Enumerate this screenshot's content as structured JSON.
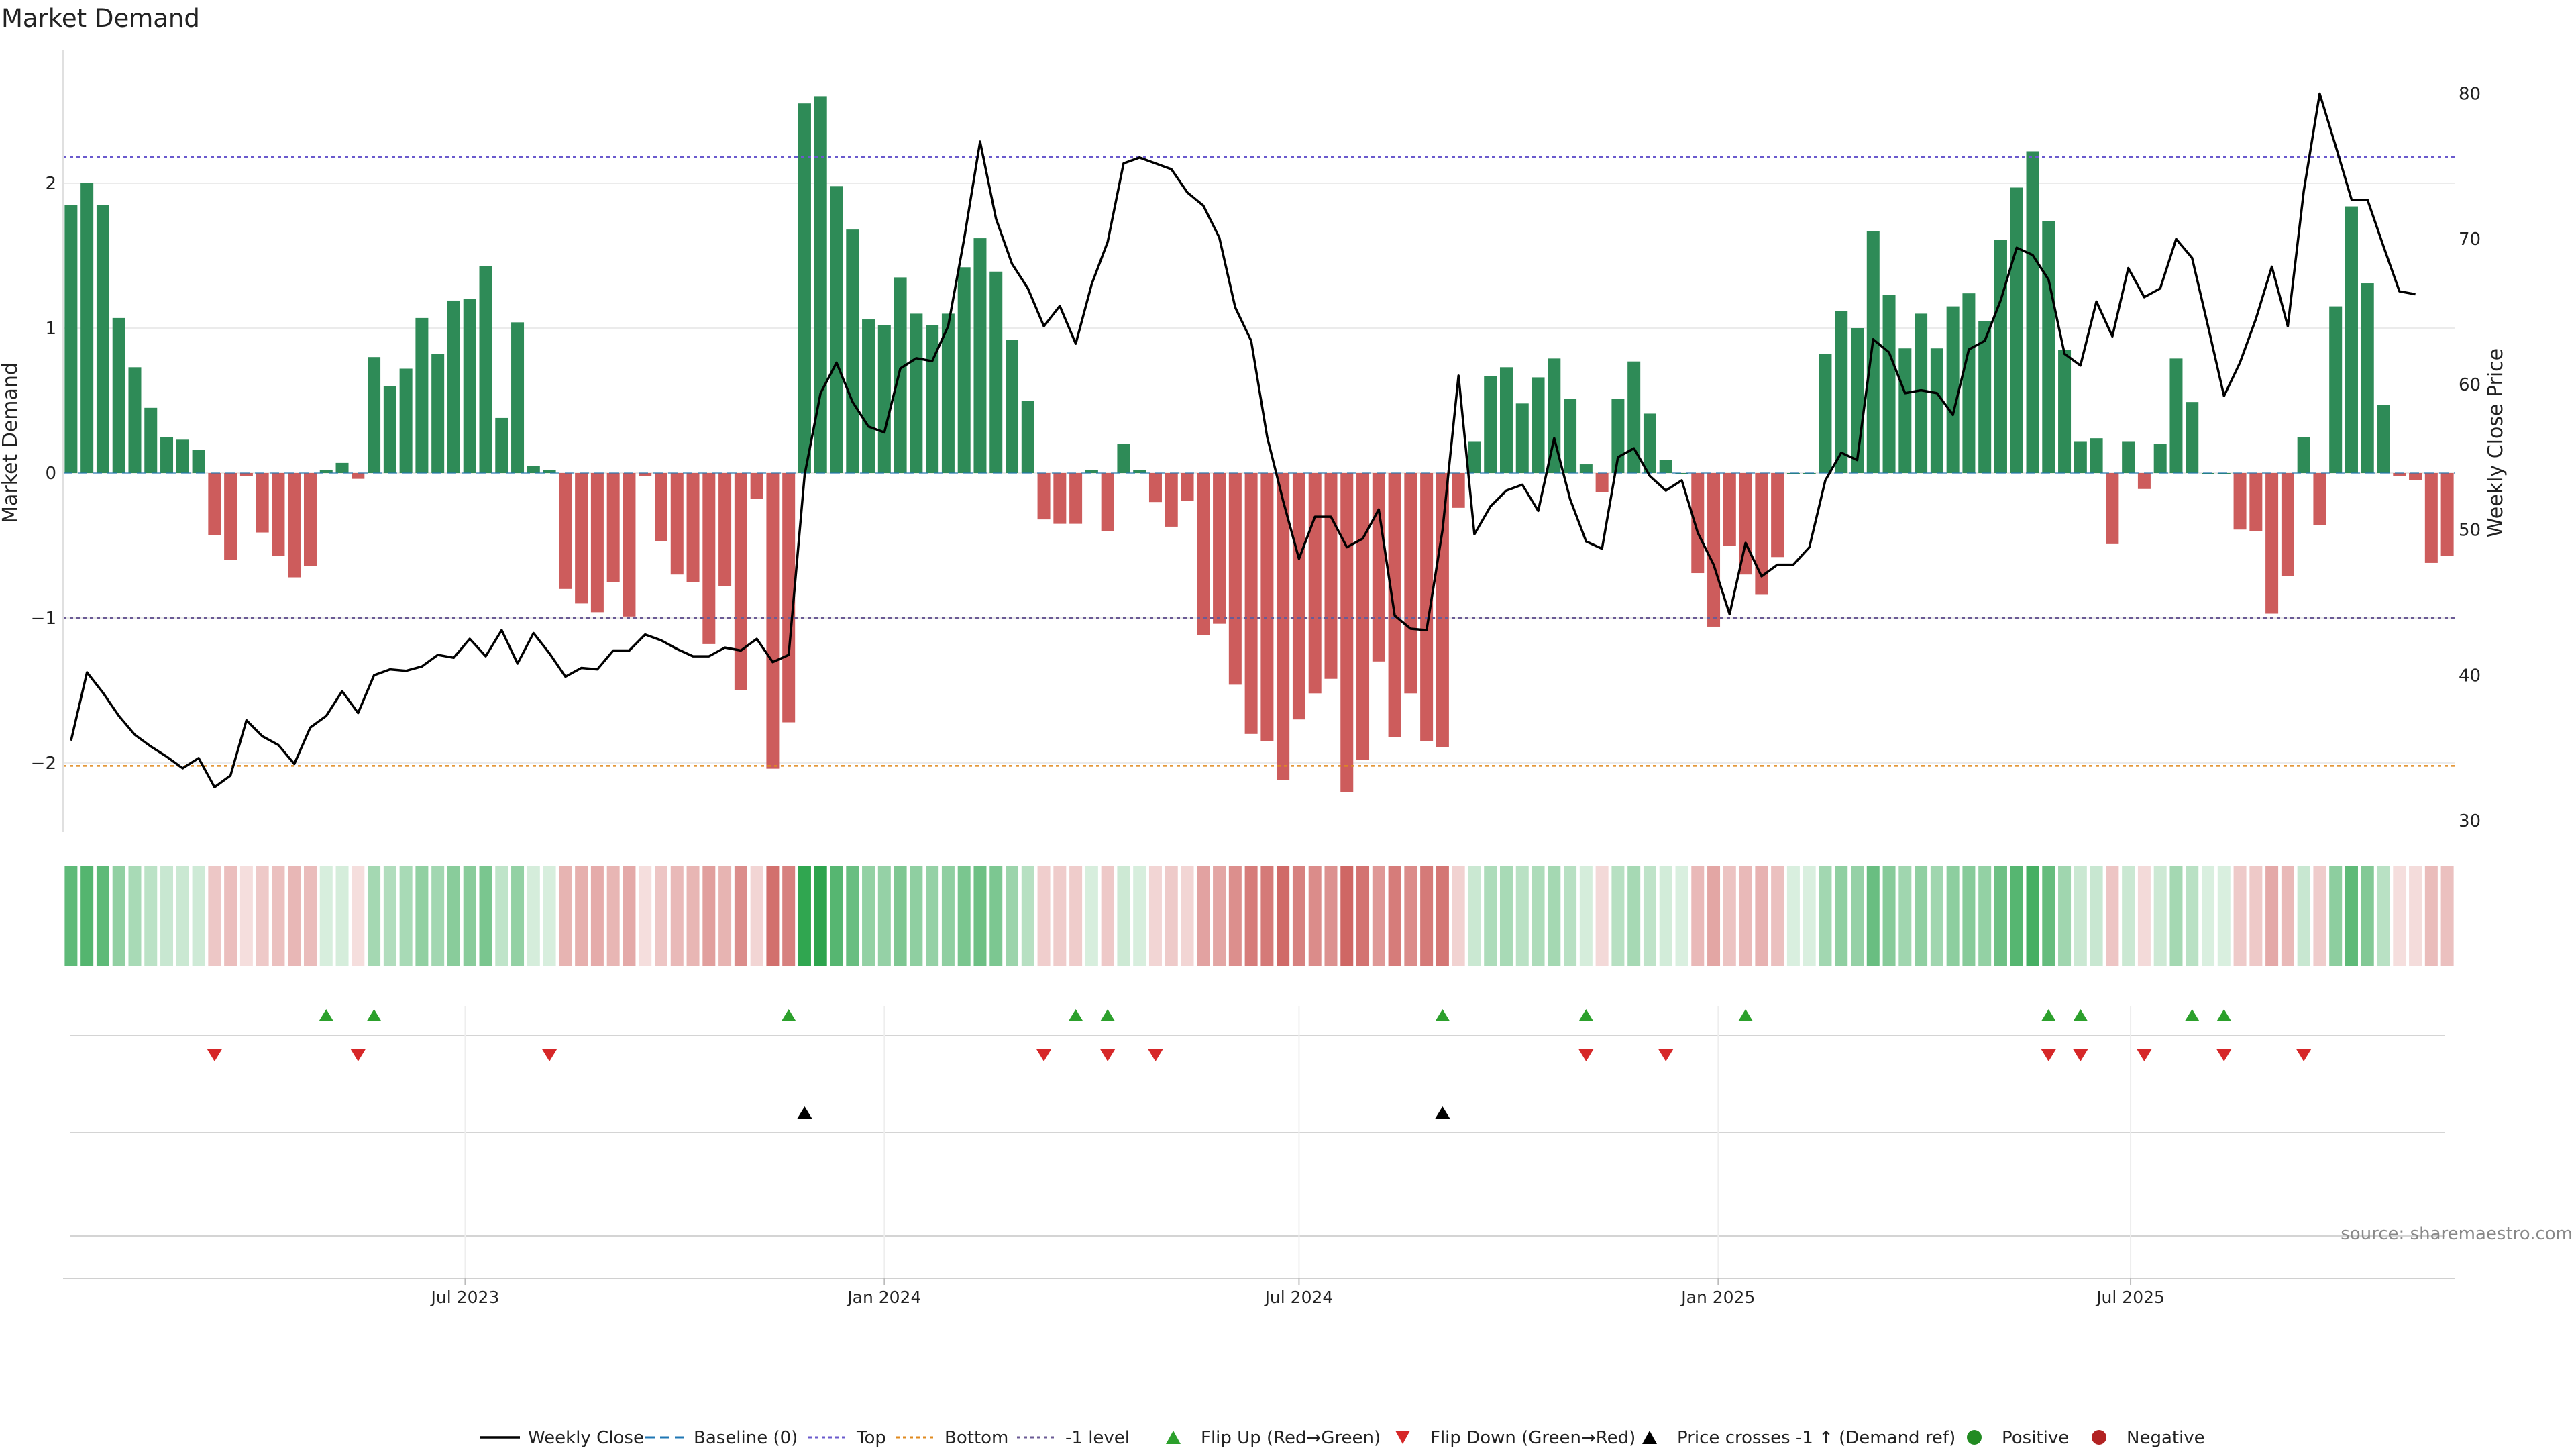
{
  "chart_data": {
    "type": "bar",
    "title": "Market Demand",
    "ylabel": "Market Demand",
    "ylabel_right": "Weekly Close Price",
    "ylim": [
      -2.45,
      2.9
    ],
    "ylim_right": [
      30,
      82
    ],
    "y_ticks": [
      -2,
      -1,
      0,
      1,
      2
    ],
    "y_ticks_right": [
      30,
      40,
      50,
      60,
      70,
      80
    ],
    "x_start": "2023-01-09",
    "x_tick_labels": [
      {
        "date": "2023-07-01",
        "label": "Jul 2023"
      },
      {
        "date": "2024-01-01",
        "label": "Jan 2024"
      },
      {
        "date": "2024-07-01",
        "label": "Jul 2024"
      },
      {
        "date": "2025-01-01",
        "label": "Jan 2025"
      },
      {
        "date": "2025-07-01",
        "label": "Jul 2025"
      }
    ],
    "reference_lines": {
      "top": 2.18,
      "bottom": -2.02,
      "minus_one": -1.0,
      "baseline": 0
    },
    "series": [
      {
        "name": "Market Demand",
        "values": [
          1.85,
          2.0,
          1.85,
          1.07,
          0.73,
          0.45,
          0.25,
          0.23,
          0.16,
          -0.43,
          -0.6,
          -0.02,
          -0.41,
          -0.57,
          -0.72,
          -0.64,
          0.02,
          0.07,
          -0.04,
          0.8,
          0.6,
          0.72,
          1.07,
          0.82,
          1.19,
          1.2,
          1.43,
          0.38,
          1.04,
          0.05,
          0.02,
          -0.8,
          -0.9,
          -0.96,
          -0.75,
          -0.99,
          -0.02,
          -0.47,
          -0.7,
          -0.75,
          -1.18,
          -0.78,
          -1.5,
          -0.18,
          -2.04,
          -1.72,
          2.55,
          2.6,
          1.98,
          1.68,
          1.06,
          1.02,
          1.35,
          1.1,
          1.02,
          1.1,
          1.42,
          1.62,
          1.39,
          0.92,
          0.5,
          -0.32,
          -0.35,
          -0.35,
          0.02,
          -0.4,
          0.2,
          0.02,
          -0.2,
          -0.37,
          -0.19,
          -1.12,
          -1.04,
          -1.46,
          -1.8,
          -1.85,
          -2.12,
          -1.7,
          -1.52,
          -1.42,
          -2.2,
          -1.98,
          -1.3,
          -1.82,
          -1.52,
          -1.85,
          -1.89,
          -0.24,
          0.22,
          0.67,
          0.73,
          0.48,
          0.66,
          0.79,
          0.51,
          0.06,
          -0.13,
          0.51,
          0.77,
          0.41,
          0.09,
          0.0,
          -0.69,
          -1.06,
          -0.5,
          -0.7,
          -0.84,
          -0.58,
          0.0,
          0.0,
          0.82,
          1.12,
          1.0,
          1.67,
          1.23,
          0.86,
          1.1,
          0.86,
          1.15,
          1.24,
          1.05,
          1.61,
          1.97,
          2.22,
          1.74,
          0.85,
          0.22,
          0.24,
          -0.49,
          0.22,
          -0.11,
          0.2,
          0.79,
          0.49,
          0.0,
          0.0,
          -0.39,
          -0.4,
          -0.97,
          -0.71,
          0.25,
          -0.36,
          1.15,
          1.84,
          1.31,
          0.47,
          -0.02,
          -0.05,
          -0.62,
          -0.57
        ]
      },
      {
        "name": "Weekly Close",
        "values": [
          35.5,
          40.2,
          38.8,
          37.2,
          35.9,
          35.1,
          34.4,
          33.6,
          34.3,
          32.3,
          33.1,
          36.9,
          35.8,
          35.2,
          33.9,
          36.4,
          37.2,
          38.9,
          37.4,
          40.0,
          40.4,
          40.3,
          40.6,
          41.4,
          41.2,
          42.5,
          41.3,
          43.1,
          40.8,
          42.9,
          41.5,
          39.9,
          40.5,
          40.4,
          41.7,
          41.7,
          42.8,
          42.4,
          41.8,
          41.3,
          41.3,
          41.9,
          41.7,
          42.5,
          40.9,
          41.4,
          53.8,
          59.4,
          61.5,
          58.8,
          57.1,
          56.7,
          61.1,
          61.8,
          61.6,
          64.0,
          70.0,
          76.7,
          71.4,
          68.3,
          66.6,
          64.0,
          65.4,
          62.8,
          66.9,
          69.8,
          75.2,
          75.6,
          75.2,
          74.8,
          73.2,
          72.3,
          70.1,
          65.3,
          63.0,
          56.4,
          52.0,
          48.0,
          50.9,
          50.9,
          48.8,
          49.4,
          51.4,
          44.1,
          43.2,
          43.1,
          50.0,
          60.6,
          49.7,
          51.6,
          52.7,
          53.1,
          51.3,
          56.3,
          52.1,
          49.2,
          48.7,
          55.0,
          55.6,
          53.7,
          52.7,
          53.4,
          49.8,
          47.6,
          44.2,
          49.1,
          46.8,
          47.6,
          47.6,
          48.8,
          53.4,
          55.3,
          54.8,
          63.1,
          62.2,
          59.4,
          59.6,
          59.4,
          57.9,
          62.4,
          63.0,
          65.8,
          69.4,
          68.9,
          67.2,
          62.1,
          61.3,
          65.7,
          63.3,
          68.0,
          66.0,
          66.6,
          70.0,
          68.7,
          64.0,
          59.2,
          61.5,
          64.5,
          68.1,
          64.0,
          73.3,
          80.0,
          76.4,
          72.7,
          72.7,
          69.5,
          66.4,
          66.2
        ]
      }
    ],
    "flip_up_weeks": [
      16,
      19,
      45,
      63,
      65,
      86,
      95,
      105,
      124,
      126,
      133,
      135
    ],
    "flip_down_weeks": [
      9,
      18,
      30,
      61,
      65,
      68,
      95,
      100,
      124,
      126,
      130,
      135,
      140
    ],
    "price_cross_weeks": [
      46,
      86
    ],
    "legend": [
      "Weekly Close",
      "Baseline (0)",
      "Top",
      "Bottom",
      "-1 level",
      "Flip Up (Red→Green)",
      "Flip Down (Green→Red)",
      "Price crosses -1 ↑ (Demand ref)",
      "Positive",
      "Negative"
    ],
    "legend_position": "bottom",
    "annotation": "source: sharemaestro.com",
    "colors": {
      "positive": "#2e8b57",
      "negative": "#cd5c5c",
      "price": "#000000",
      "top": "#6a5acd",
      "bottom": "#e08a1e",
      "minus_one": "#6b5b95",
      "baseline": "#1f77b4",
      "flip_up": "#2ca02c",
      "flip_down": "#d62728",
      "positive_dot": "#228b22",
      "negative_dot": "#b22222"
    }
  }
}
